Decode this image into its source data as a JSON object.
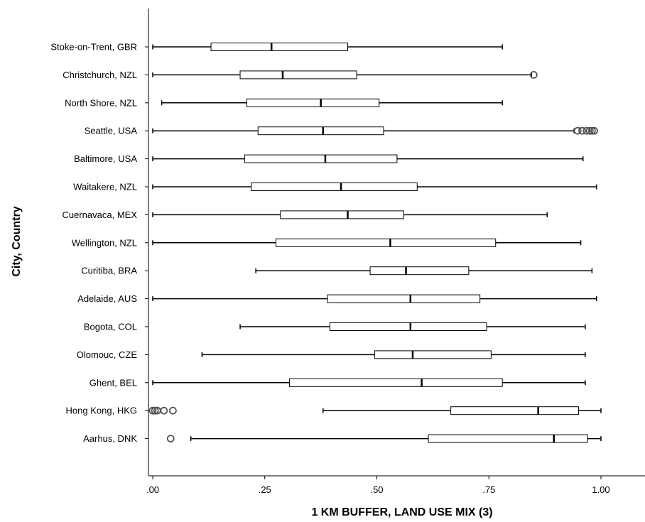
{
  "chart_data": {
    "type": "boxplot",
    "orientation": "horizontal",
    "xlabel": "1 KM BUFFER, LAND USE MIX (3)",
    "ylabel": "City, Country",
    "xlim": [
      0,
      1
    ],
    "ticks": [
      {
        "value": 0,
        "label": ".00"
      },
      {
        "value": 0.25,
        "label": ".25"
      },
      {
        "value": 0.5,
        "label": ".50"
      },
      {
        "value": 0.75,
        "label": ".75"
      },
      {
        "value": 1,
        "label": "1.00"
      }
    ],
    "grid": false,
    "series": [
      {
        "category": "Stoke-on-Trent, GBR",
        "min": 0.0,
        "q1": 0.13,
        "median": 0.265,
        "q3": 0.435,
        "max": 0.78,
        "outliers": []
      },
      {
        "category": "Christchurch, NZL",
        "min": 0.0,
        "q1": 0.195,
        "median": 0.29,
        "q3": 0.455,
        "max": 0.845,
        "outliers": [
          0.85
        ]
      },
      {
        "category": "North Shore, NZL",
        "min": 0.02,
        "q1": 0.21,
        "median": 0.375,
        "q3": 0.505,
        "max": 0.78,
        "outliers": []
      },
      {
        "category": "Seattle, USA",
        "min": 0.0,
        "q1": 0.235,
        "median": 0.38,
        "q3": 0.515,
        "max": 0.94,
        "outliers": [
          0.948,
          0.958,
          0.968,
          0.975,
          0.98,
          0.985
        ]
      },
      {
        "category": "Baltimore, USA",
        "min": 0.0,
        "q1": 0.205,
        "median": 0.385,
        "q3": 0.545,
        "max": 0.96,
        "outliers": []
      },
      {
        "category": "Waitakere, NZL",
        "min": 0.0,
        "q1": 0.22,
        "median": 0.42,
        "q3": 0.59,
        "max": 0.99,
        "outliers": []
      },
      {
        "category": "Cuernavaca, MEX",
        "min": 0.0,
        "q1": 0.285,
        "median": 0.435,
        "q3": 0.56,
        "max": 0.88,
        "outliers": []
      },
      {
        "category": "Wellington, NZL",
        "min": 0.0,
        "q1": 0.275,
        "median": 0.53,
        "q3": 0.765,
        "max": 0.955,
        "outliers": []
      },
      {
        "category": "Curitiba, BRA",
        "min": 0.23,
        "q1": 0.485,
        "median": 0.565,
        "q3": 0.705,
        "max": 0.98,
        "outliers": []
      },
      {
        "category": "Adelaide, AUS",
        "min": 0.0,
        "q1": 0.39,
        "median": 0.575,
        "q3": 0.73,
        "max": 0.99,
        "outliers": []
      },
      {
        "category": "Bogota, COL",
        "min": 0.195,
        "q1": 0.395,
        "median": 0.575,
        "q3": 0.745,
        "max": 0.965,
        "outliers": []
      },
      {
        "category": "Olomouc, CZE",
        "min": 0.11,
        "q1": 0.495,
        "median": 0.58,
        "q3": 0.755,
        "max": 0.965,
        "outliers": []
      },
      {
        "category": "Ghent, BEL",
        "min": 0.0,
        "q1": 0.305,
        "median": 0.6,
        "q3": 0.78,
        "max": 0.965,
        "outliers": []
      },
      {
        "category": "Hong Kong, HKG",
        "min": 0.38,
        "q1": 0.665,
        "median": 0.86,
        "q3": 0.95,
        "max": 1.0,
        "outliers": [
          0.0,
          0.005,
          0.01,
          0.025,
          0.045
        ]
      },
      {
        "category": "Aarhus, DNK",
        "min": 0.085,
        "q1": 0.615,
        "median": 0.895,
        "q3": 0.97,
        "max": 1.0,
        "outliers": [
          0.04
        ]
      }
    ]
  }
}
